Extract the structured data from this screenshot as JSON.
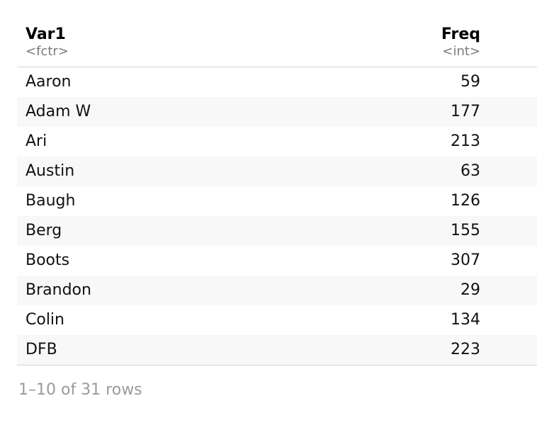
{
  "table": {
    "columns": [
      {
        "name": "Var1",
        "type": "<fctr>"
      },
      {
        "name": "Freq",
        "type": "<int>"
      }
    ],
    "rows": [
      {
        "var1": "Aaron",
        "freq": "59"
      },
      {
        "var1": "Adam W",
        "freq": "177"
      },
      {
        "var1": "Ari",
        "freq": "213"
      },
      {
        "var1": "Austin",
        "freq": "63"
      },
      {
        "var1": "Baugh",
        "freq": "126"
      },
      {
        "var1": "Berg",
        "freq": "155"
      },
      {
        "var1": "Boots",
        "freq": "307"
      },
      {
        "var1": "Brandon",
        "freq": "29"
      },
      {
        "var1": "Colin",
        "freq": "134"
      },
      {
        "var1": "DFB",
        "freq": "223"
      }
    ]
  },
  "footer": {
    "row_info": "1–10 of 31 rows"
  }
}
